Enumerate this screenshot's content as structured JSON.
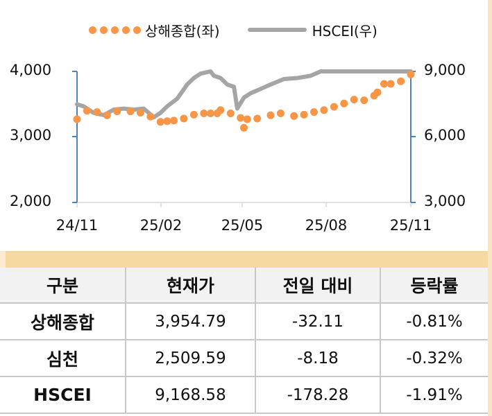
{
  "legend": {
    "series1_label": "상해종합(좌)",
    "series2_label": "HSCEI(우)"
  },
  "axes": {
    "left_ticks": [
      "4,000",
      "3,000",
      "2,000"
    ],
    "right_ticks": [
      "9,000",
      "6,000",
      "3,000"
    ],
    "x_ticks": [
      "24/11",
      "25/02",
      "25/05",
      "25/08",
      "25/11"
    ]
  },
  "colors": {
    "shanghai": "#f79646",
    "hscei": "#a5a5a5",
    "axis": "#4f81bd",
    "band": "#f6d9a0",
    "header_bg": "#f2f2f2"
  },
  "table": {
    "headers": [
      "구분",
      "현재가",
      "전일 대비",
      "등락률"
    ],
    "rows": [
      {
        "name": "상해종합",
        "price": "3,954.79",
        "change": "-32.11",
        "rate": "-0.81%"
      },
      {
        "name": "심천",
        "price": "2,509.59",
        "change": "-8.18",
        "rate": "-0.32%"
      },
      {
        "name": "HSCEI",
        "price": "9,168.58",
        "change": "-178.28",
        "rate": "-1.91%"
      }
    ]
  },
  "chart_data": {
    "type": "line",
    "title": "",
    "xlabel": "",
    "ylabel": "",
    "x_range": [
      "24/11",
      "25/11"
    ],
    "x_tick_labels": [
      "24/11",
      "25/02",
      "25/05",
      "25/08",
      "25/11"
    ],
    "legend_position": "top",
    "grid": false,
    "y_left": {
      "label": "상해종합(좌)",
      "range": [
        2000,
        4000
      ],
      "ticks": [
        2000,
        3000,
        4000
      ]
    },
    "y_right": {
      "label": "HSCEI(우)",
      "range": [
        3000,
        9000
      ],
      "ticks": [
        3000,
        6000,
        9000
      ]
    },
    "series": [
      {
        "name": "상해종합(좌)",
        "axis": "left",
        "style": "dotted-markers",
        "x": [
          0.0,
          0.03,
          0.06,
          0.09,
          0.12,
          0.16,
          0.19,
          0.22,
          0.25,
          0.27,
          0.29,
          0.32,
          0.35,
          0.38,
          0.4,
          0.42,
          0.43,
          0.46,
          0.49,
          0.5,
          0.51,
          0.54,
          0.58,
          0.61,
          0.65,
          0.68,
          0.71,
          0.74,
          0.77,
          0.8,
          0.83,
          0.86,
          0.89,
          0.9,
          0.92,
          0.94,
          0.97,
          1.0
        ],
        "values": [
          3270,
          3400,
          3380,
          3330,
          3390,
          3390,
          3370,
          3310,
          3230,
          3240,
          3250,
          3280,
          3340,
          3360,
          3360,
          3360,
          3410,
          3360,
          3290,
          3140,
          3270,
          3280,
          3330,
          3360,
          3320,
          3340,
          3380,
          3410,
          3460,
          3510,
          3570,
          3560,
          3630,
          3680,
          3810,
          3810,
          3850,
          3954
        ]
      },
      {
        "name": "HSCEI(우)",
        "axis": "right",
        "style": "line",
        "x": [
          0.0,
          0.02,
          0.05,
          0.08,
          0.11,
          0.14,
          0.17,
          0.2,
          0.23,
          0.25,
          0.27,
          0.3,
          0.33,
          0.35,
          0.37,
          0.4,
          0.41,
          0.43,
          0.45,
          0.47,
          0.48,
          0.5,
          0.52,
          0.55,
          0.58,
          0.62,
          0.66,
          0.7,
          0.73,
          0.76,
          0.79,
          0.82,
          0.85,
          0.88,
          0.91,
          0.94,
          0.97,
          1.0
        ],
        "values": [
          7500,
          7400,
          7100,
          7000,
          7250,
          7300,
          7250,
          7300,
          6900,
          7100,
          7400,
          7750,
          8400,
          8700,
          8900,
          9050,
          8800,
          8700,
          8400,
          8300,
          7300,
          7800,
          8000,
          8200,
          8400,
          8650,
          8700,
          8800,
          9000,
          9100,
          9150,
          9100,
          9200,
          9150,
          9300,
          9100,
          9050,
          9168
        ]
      }
    ]
  }
}
